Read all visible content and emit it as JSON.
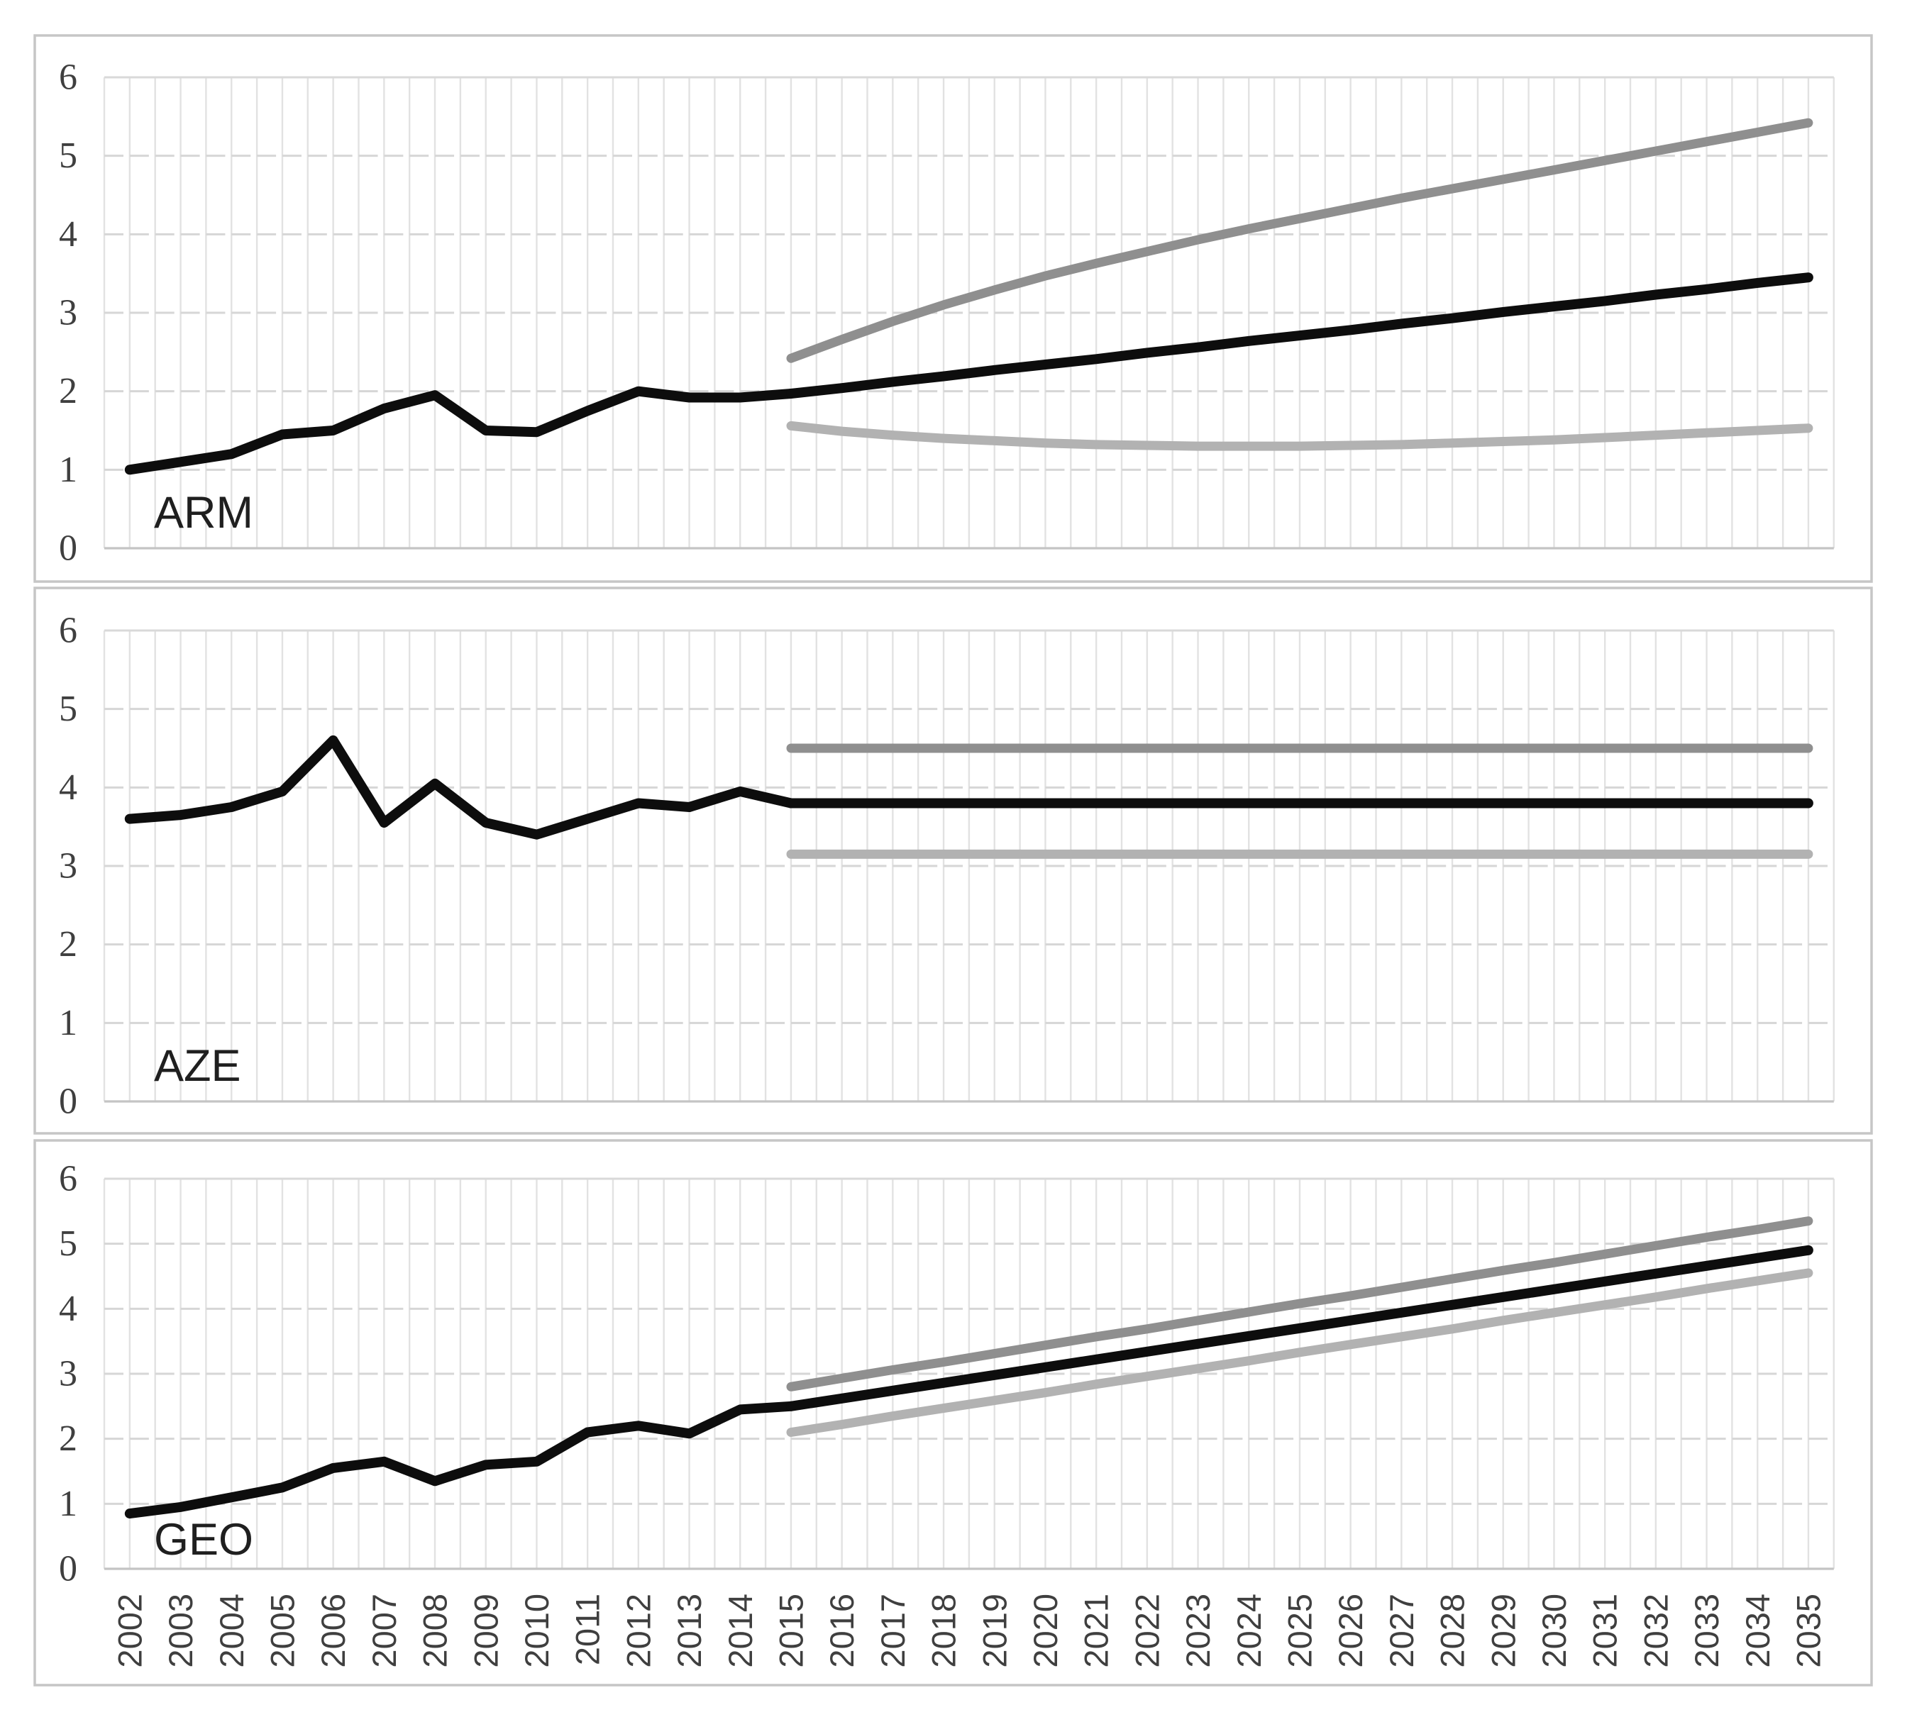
{
  "figure": {
    "background": "#ffffff",
    "panel_border_color": "#c6c6c6"
  },
  "colors": {
    "actual": "#0d0d0d",
    "projection_mid": "#0d0d0d",
    "projection_high": "#8f8f8f",
    "projection_low": "#b2b2b2",
    "gridline_vertical": "#e2e2e2",
    "gridline_horizontal": "#d6d6d6",
    "plot_top_line": "#d9d9d9",
    "axis_zero_line": "#c4c4c4",
    "tick_label": "#3f3f3f",
    "panel_label": "#1f1f1f"
  },
  "chart_data": [
    {
      "type": "line",
      "panel_label": "ARM",
      "ylim": [
        0,
        6
      ],
      "y_ticks": [
        0,
        1,
        2,
        3,
        4,
        5,
        6
      ],
      "x_range": [
        2002,
        2035
      ],
      "grid": true,
      "legend": "none",
      "series": [
        {
          "name": "actual",
          "color": "actual",
          "start_year": 2002,
          "values": [
            1.0,
            1.1,
            1.2,
            1.45,
            1.5,
            1.78,
            1.95,
            1.5,
            1.48,
            1.75,
            2.0,
            1.92,
            1.92,
            1.97
          ]
        },
        {
          "name": "projection-high",
          "color": "projection_high",
          "start_year": 2015,
          "values": [
            2.42,
            2.66,
            2.89,
            3.1,
            3.29,
            3.47,
            3.63,
            3.78,
            3.93,
            4.07,
            4.2,
            4.33,
            4.46,
            4.58,
            4.7,
            4.82,
            4.94,
            5.06,
            5.18,
            5.3,
            5.42
          ]
        },
        {
          "name": "projection-low",
          "color": "projection_low",
          "start_year": 2015,
          "values": [
            1.56,
            1.49,
            1.44,
            1.4,
            1.37,
            1.34,
            1.32,
            1.31,
            1.3,
            1.3,
            1.3,
            1.31,
            1.32,
            1.34,
            1.36,
            1.38,
            1.41,
            1.44,
            1.47,
            1.5,
            1.53
          ]
        },
        {
          "name": "projection-mid",
          "color": "projection_mid",
          "start_year": 2015,
          "values": [
            1.97,
            2.04,
            2.12,
            2.19,
            2.27,
            2.34,
            2.41,
            2.49,
            2.56,
            2.64,
            2.71,
            2.78,
            2.86,
            2.93,
            3.01,
            3.08,
            3.15,
            3.23,
            3.3,
            3.38,
            3.45
          ]
        }
      ]
    },
    {
      "type": "line",
      "panel_label": "AZE",
      "ylim": [
        0,
        6
      ],
      "y_ticks": [
        0,
        1,
        2,
        3,
        4,
        5,
        6
      ],
      "x_range": [
        2002,
        2035
      ],
      "grid": true,
      "legend": "none",
      "series": [
        {
          "name": "actual",
          "color": "actual",
          "start_year": 2002,
          "values": [
            3.6,
            3.65,
            3.75,
            3.95,
            4.6,
            3.55,
            4.05,
            3.55,
            3.4,
            3.6,
            3.8,
            3.75,
            3.95,
            3.8
          ]
        },
        {
          "name": "projection-high",
          "color": "projection_high",
          "start_year": 2015,
          "values": [
            4.5,
            4.5,
            4.5,
            4.5,
            4.5,
            4.5,
            4.5,
            4.5,
            4.5,
            4.5,
            4.5,
            4.5,
            4.5,
            4.5,
            4.5,
            4.5,
            4.5,
            4.5,
            4.5,
            4.5,
            4.5
          ]
        },
        {
          "name": "projection-low",
          "color": "projection_low",
          "start_year": 2015,
          "values": [
            3.15,
            3.15,
            3.15,
            3.15,
            3.15,
            3.15,
            3.15,
            3.15,
            3.15,
            3.15,
            3.15,
            3.15,
            3.15,
            3.15,
            3.15,
            3.15,
            3.15,
            3.15,
            3.15,
            3.15,
            3.15
          ]
        },
        {
          "name": "projection-mid",
          "color": "projection_mid",
          "start_year": 2015,
          "values": [
            3.8,
            3.8,
            3.8,
            3.8,
            3.8,
            3.8,
            3.8,
            3.8,
            3.8,
            3.8,
            3.8,
            3.8,
            3.8,
            3.8,
            3.8,
            3.8,
            3.8,
            3.8,
            3.8,
            3.8,
            3.8
          ]
        }
      ]
    },
    {
      "type": "line",
      "panel_label": "GEO",
      "ylim": [
        0,
        6
      ],
      "y_ticks": [
        0,
        1,
        2,
        3,
        4,
        5,
        6
      ],
      "x_range": [
        2002,
        2035
      ],
      "x_tick_labels": [
        "2002",
        "2003",
        "2004",
        "2005",
        "2006",
        "2007",
        "2008",
        "2009",
        "2010",
        "2011",
        "2012",
        "2013",
        "2014",
        "2015",
        "2016",
        "2017",
        "2018",
        "2019",
        "2020",
        "2021",
        "2022",
        "2023",
        "2024",
        "2025",
        "2026",
        "2027",
        "2028",
        "2029",
        "2030",
        "2031",
        "2032",
        "2033",
        "2034",
        "2035"
      ],
      "grid": true,
      "legend": "none",
      "series": [
        {
          "name": "actual",
          "color": "actual",
          "start_year": 2002,
          "values": [
            0.85,
            0.95,
            1.1,
            1.25,
            1.55,
            1.65,
            1.35,
            1.6,
            1.65,
            2.1,
            2.2,
            2.08,
            2.45,
            2.5
          ]
        },
        {
          "name": "projection-high",
          "color": "projection_high",
          "start_year": 2015,
          "values": [
            2.8,
            2.93,
            3.06,
            3.18,
            3.31,
            3.44,
            3.57,
            3.69,
            3.82,
            3.95,
            4.08,
            4.2,
            4.33,
            4.46,
            4.59,
            4.71,
            4.84,
            4.97,
            5.1,
            5.22,
            5.35
          ]
        },
        {
          "name": "projection-low",
          "color": "projection_low",
          "start_year": 2015,
          "values": [
            2.1,
            2.22,
            2.35,
            2.47,
            2.59,
            2.71,
            2.84,
            2.96,
            3.08,
            3.2,
            3.33,
            3.45,
            3.57,
            3.69,
            3.82,
            3.94,
            4.06,
            4.18,
            4.31,
            4.43,
            4.55
          ]
        },
        {
          "name": "projection-mid",
          "color": "projection_mid",
          "start_year": 2015,
          "values": [
            2.5,
            2.62,
            2.74,
            2.86,
            2.98,
            3.1,
            3.22,
            3.34,
            3.46,
            3.58,
            3.7,
            3.82,
            3.94,
            4.06,
            4.18,
            4.3,
            4.42,
            4.54,
            4.66,
            4.78,
            4.9
          ]
        }
      ]
    }
  ]
}
